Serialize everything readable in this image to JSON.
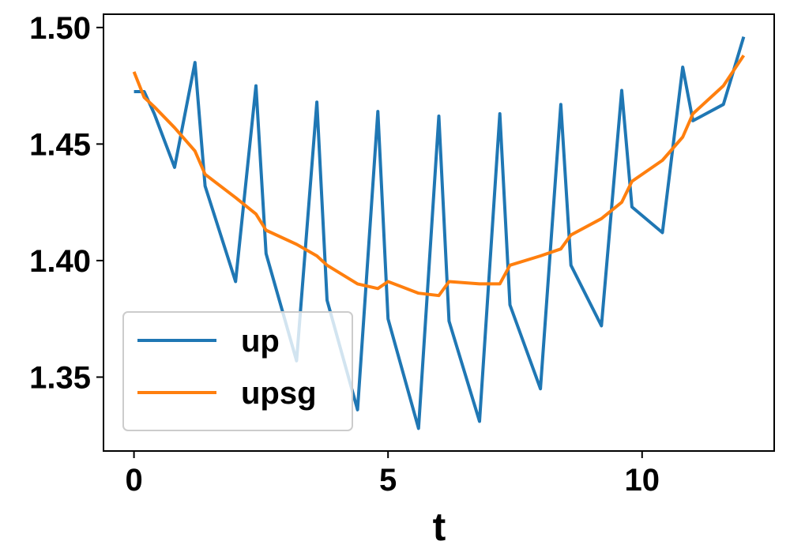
{
  "chart_data": {
    "type": "line",
    "title": "",
    "xlabel": "t",
    "ylabel": "",
    "xlim": [
      -0.6,
      12.6
    ],
    "ylim": [
      1.3183,
      1.5057
    ],
    "xticks": [
      0,
      5,
      10
    ],
    "yticks": [
      1.35,
      1.4,
      1.45,
      1.5
    ],
    "ytick_labels": [
      "1.35",
      "1.40",
      "1.45",
      "1.50"
    ],
    "grid": false,
    "legend": {
      "placement": "lower-left"
    },
    "series": [
      {
        "name": "up",
        "color": "#1f77b4",
        "x": [
          0,
          0.2,
          0.4,
          0.8,
          1.2,
          1.4,
          2.0,
          2.4,
          2.6,
          3.2,
          3.6,
          3.8,
          4.4,
          4.8,
          5.0,
          5.6,
          6.0,
          6.2,
          6.8,
          7.2,
          7.4,
          8.0,
          8.4,
          8.6,
          9.2,
          9.6,
          9.8,
          10.4,
          10.8,
          11.0,
          11.6,
          12.0
        ],
        "y": [
          1.4725,
          1.4725,
          1.463,
          1.44,
          1.485,
          1.432,
          1.391,
          1.475,
          1.403,
          1.357,
          1.468,
          1.383,
          1.336,
          1.464,
          1.375,
          1.328,
          1.462,
          1.374,
          1.331,
          1.463,
          1.381,
          1.345,
          1.467,
          1.398,
          1.372,
          1.473,
          1.423,
          1.412,
          1.483,
          1.46,
          1.467,
          1.496
        ]
      },
      {
        "name": "upsg",
        "color": "#ff7f0e",
        "x": [
          0,
          0.2,
          0.4,
          0.8,
          1.2,
          1.4,
          2.0,
          2.4,
          2.6,
          3.2,
          3.6,
          3.8,
          4.4,
          4.8,
          5.0,
          5.6,
          6.0,
          6.2,
          6.8,
          7.2,
          7.4,
          8.0,
          8.4,
          8.6,
          9.2,
          9.6,
          9.8,
          10.4,
          10.8,
          11.0,
          11.6,
          12.0
        ],
        "y": [
          1.481,
          1.47,
          1.466,
          1.457,
          1.447,
          1.437,
          1.427,
          1.42,
          1.413,
          1.407,
          1.402,
          1.398,
          1.39,
          1.388,
          1.391,
          1.386,
          1.385,
          1.391,
          1.39,
          1.39,
          1.398,
          1.402,
          1.405,
          1.411,
          1.418,
          1.425,
          1.434,
          1.443,
          1.453,
          1.463,
          1.475,
          1.488
        ]
      }
    ]
  }
}
